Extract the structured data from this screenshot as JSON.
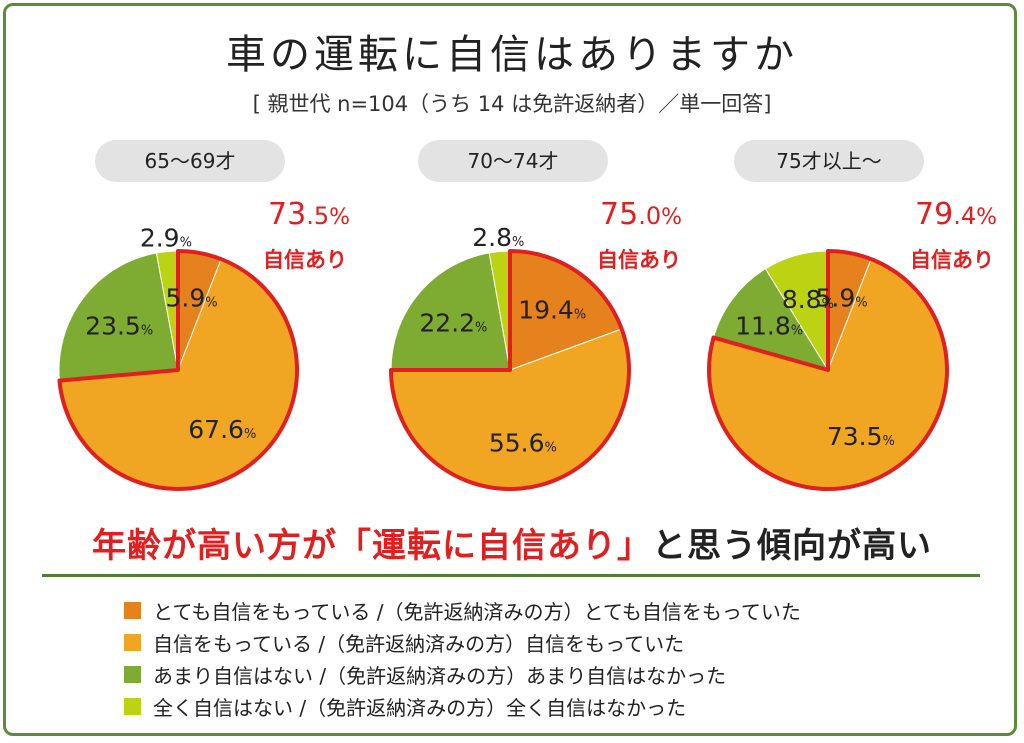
{
  "title": "車の運転に自信はありますか",
  "subtitle": "[ 親世代 n=104（うち 14 は免許返納者）／単一回答]",
  "headline": {
    "part1": "年齢が高い方が",
    "part2": "「運転に自信あり」",
    "part3": "と思う傾向が高い"
  },
  "colors": {
    "very_confident": "#e6821e",
    "confident": "#f0a523",
    "not_very": "#7eab32",
    "not_at_all": "#bcd313",
    "highlight": "#e02020",
    "frame": "#5b8c3a"
  },
  "chart_data": {
    "type": "pie",
    "confident_label": "自信あり",
    "percent_unit": "%",
    "legend": [
      {
        "label": "とても自信をもっている /（免許返納済みの方）とても自信をもっていた",
        "color": "#e6821e"
      },
      {
        "label": "自信をもっている /（免許返納済みの方）自信をもっていた",
        "color": "#f0a523"
      },
      {
        "label": "あまり自信はない /（免許返納済みの方）あまり自信はなかった",
        "color": "#7eab32"
      },
      {
        "label": "全く自信はない /（免許返納済みの方）全く自信はなかった",
        "color": "#bcd313"
      }
    ],
    "pies": [
      {
        "group": "65〜69才",
        "confident_total_int": "73",
        "confident_total_dec": ".5",
        "values": [
          5.9,
          67.6,
          23.5,
          2.9
        ],
        "labels": [
          "5.9",
          "67.6",
          "23.5",
          "2.9"
        ]
      },
      {
        "group": "70〜74才",
        "confident_total_int": "75",
        "confident_total_dec": ".0",
        "values": [
          19.4,
          55.6,
          22.2,
          2.8
        ],
        "labels": [
          "19.4",
          "55.6",
          "22.2",
          "2.8"
        ]
      },
      {
        "group": "75才以上〜",
        "confident_total_int": "79",
        "confident_total_dec": ".4",
        "values": [
          5.9,
          73.5,
          11.8,
          8.8
        ],
        "labels": [
          "5.9",
          "73.5",
          "11.8",
          "8.8"
        ]
      }
    ]
  }
}
